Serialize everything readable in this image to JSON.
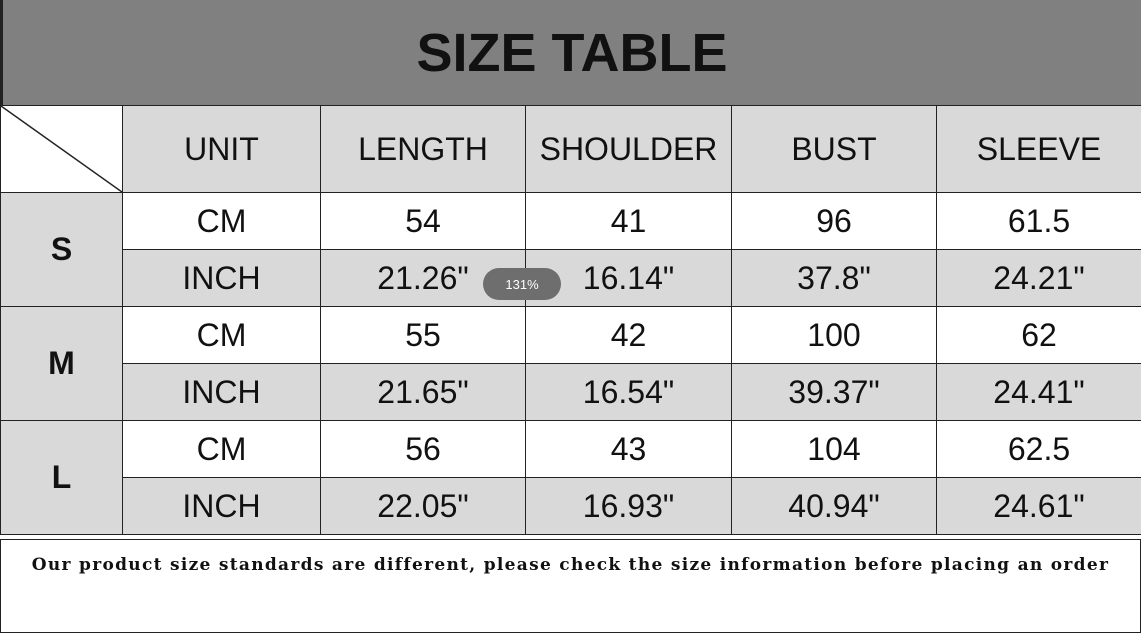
{
  "title": "SIZE TABLE",
  "headers": [
    "UNIT",
    "LENGTH",
    "SHOULDER",
    "BUST",
    "SLEEVE"
  ],
  "sizes": [
    {
      "size": "S",
      "cm": [
        "CM",
        "54",
        "41",
        "96",
        "61.5"
      ],
      "inch": [
        "INCH",
        "21.26\"",
        "16.14\"",
        "37.8\"",
        "24.21\""
      ]
    },
    {
      "size": "M",
      "cm": [
        "CM",
        "55",
        "42",
        "100",
        "62"
      ],
      "inch": [
        "INCH",
        "21.65\"",
        "16.54\"",
        "39.37\"",
        "24.41\""
      ]
    },
    {
      "size": "L",
      "cm": [
        "CM",
        "56",
        "43",
        "104",
        "62.5"
      ],
      "inch": [
        "INCH",
        "22.05\"",
        "16.93\"",
        "40.94\"",
        "24.61\""
      ]
    }
  ],
  "footer": "Our product size standards are different, please check the size information before placing an order",
  "zoom_badge": "131%"
}
